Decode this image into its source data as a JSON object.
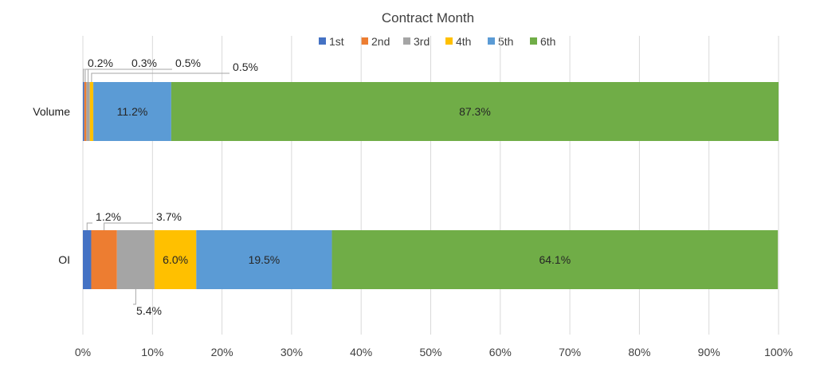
{
  "chart_data": {
    "type": "bar",
    "orientation": "horizontal",
    "stacked": "percent",
    "title": "Contract Month",
    "categories": [
      "Volume",
      "OI"
    ],
    "series": [
      {
        "name": "1st",
        "color": "#4472C4",
        "values": [
          0.2,
          1.2
        ],
        "labels": [
          "0.2%",
          "1.2%"
        ]
      },
      {
        "name": "2nd",
        "color": "#ED7D31",
        "values": [
          0.3,
          3.7
        ],
        "labels": [
          "0.3%",
          "3.7%"
        ]
      },
      {
        "name": "3rd",
        "color": "#A5A5A5",
        "values": [
          0.5,
          5.4
        ],
        "labels": [
          "0.5%",
          "5.4%"
        ]
      },
      {
        "name": "4th",
        "color": "#FFC000",
        "values": [
          0.5,
          6.0
        ],
        "labels": [
          "0.5%",
          "6.0%"
        ]
      },
      {
        "name": "5th",
        "color": "#5B9BD5",
        "values": [
          11.2,
          19.5
        ],
        "labels": [
          "11.2%",
          "19.5%"
        ]
      },
      {
        "name": "6th",
        "color": "#70AD47",
        "values": [
          87.3,
          64.1
        ],
        "labels": [
          "87.3%",
          "64.1%"
        ]
      }
    ],
    "xlim": [
      0,
      100
    ],
    "xticks": [
      "0%",
      "10%",
      "20%",
      "30%",
      "40%",
      "50%",
      "60%",
      "70%",
      "80%",
      "90%",
      "100%"
    ],
    "grid": true,
    "legend_position": "top"
  }
}
